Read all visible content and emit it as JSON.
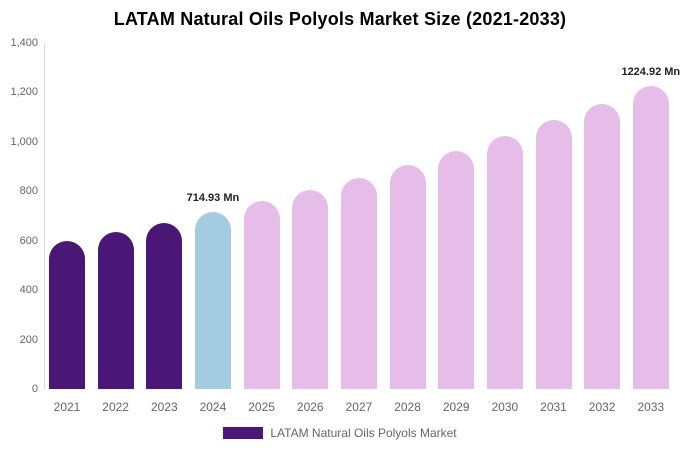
{
  "chart_data": {
    "type": "bar",
    "title": "LATAM Natural Oils Polyols Market Size (2021-2033)",
    "categories": [
      "2021",
      "2022",
      "2023",
      "2024",
      "2025",
      "2026",
      "2027",
      "2028",
      "2029",
      "2030",
      "2031",
      "2032",
      "2033"
    ],
    "values": [
      597.4,
      634.2,
      673.3,
      714.93,
      759.0,
      805.8,
      855.5,
      908.2,
      964.3,
      1023.7,
      1086.9,
      1153.9,
      1224.92
    ],
    "unit": "Mn",
    "xlabel": "",
    "ylabel": "",
    "ylim": [
      0,
      1400
    ],
    "ytick_values": [
      0,
      200,
      400,
      600,
      800,
      1000,
      1200,
      1400
    ],
    "ytick_labels": [
      "0",
      "200",
      "400",
      "600",
      "800",
      "1,000",
      "1,200",
      "1,400"
    ],
    "grid": false,
    "legend_position": "bottom-center",
    "bar_colors": [
      "#4A1777",
      "#4A1777",
      "#4A1777",
      "#A3CCE0",
      "#E6BDE8",
      "#E6BDE8",
      "#E6BDE8",
      "#E6BDE8",
      "#E6BDE8",
      "#E6BDE8",
      "#E6BDE8",
      "#E6BDE8",
      "#E6BDE8"
    ],
    "annotations": [
      {
        "index": 3,
        "category": "2024",
        "text": "714.93 Mn"
      },
      {
        "index": 12,
        "category": "2033",
        "text": "1224.92 Mn"
      }
    ]
  },
  "legend": {
    "label": "LATAM Natural Oils Polyols Market",
    "swatch_color": "#4A1777"
  },
  "colors": {
    "title_text": "#000000",
    "axis_text": "#666666",
    "annotation_text": "#222222",
    "axis_line": "#D8D8D8",
    "background": "#FFFFFF"
  }
}
